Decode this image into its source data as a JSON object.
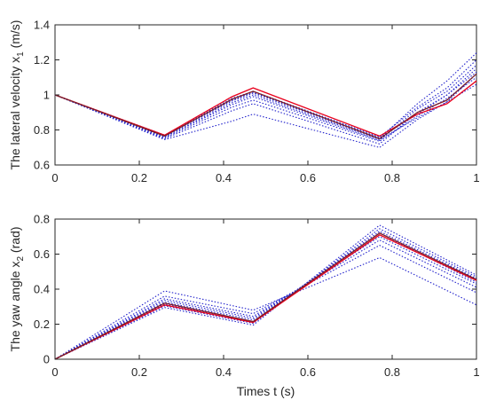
{
  "chart_data": [
    {
      "type": "line",
      "ylabel": "The lateral velocity x",
      "ylabel_sub": "1",
      "ylabel_unit": " (m/s)",
      "xlabel": "",
      "xlim": [
        0,
        1
      ],
      "ylim": [
        0.6,
        1.4
      ],
      "xticks": [
        "0",
        "0.2",
        "0.4",
        "0.6",
        "0.8",
        "1"
      ],
      "xtick_values": [
        0,
        0.2,
        0.4,
        0.6,
        0.8,
        1
      ],
      "yticks": [
        "0.6",
        "0.8",
        "1",
        "1.2",
        "1.4"
      ],
      "ytick_values": [
        0.6,
        0.8,
        1.0,
        1.2,
        1.4
      ],
      "grid": false,
      "series": [
        {
          "color": "#e8001c",
          "style": "solid",
          "x": [
            0,
            0.26,
            0.42,
            0.47,
            0.77,
            0.86,
            0.93,
            1.0
          ],
          "y": [
            1.0,
            0.77,
            0.99,
            1.04,
            0.765,
            0.89,
            0.95,
            1.08
          ]
        },
        {
          "color": "#7a1f2a",
          "style": "solid",
          "x": [
            0,
            0.26,
            0.42,
            0.47,
            0.77,
            0.86,
            0.93,
            1.0
          ],
          "y": [
            1.0,
            0.765,
            0.975,
            1.02,
            0.75,
            0.9,
            0.97,
            1.12
          ]
        },
        {
          "color": "#2222cc",
          "style": "dotted",
          "x": [
            0,
            0.26,
            0.42,
            0.47,
            0.77,
            0.86,
            0.93,
            1.0
          ],
          "y": [
            1.0,
            0.745,
            0.85,
            0.89,
            0.7,
            0.86,
            0.96,
            1.12
          ]
        },
        {
          "color": "#2222cc",
          "style": "dotted",
          "x": [
            0,
            0.26,
            0.42,
            0.47,
            0.77,
            0.86,
            0.93,
            1.0
          ],
          "y": [
            1.0,
            0.75,
            0.91,
            0.95,
            0.72,
            0.9,
            1.0,
            1.15
          ]
        },
        {
          "color": "#2222cc",
          "style": "dotted",
          "x": [
            0,
            0.26,
            0.42,
            0.47,
            0.77,
            0.86,
            0.93,
            1.0
          ],
          "y": [
            1.0,
            0.755,
            0.93,
            0.97,
            0.735,
            0.88,
            0.98,
            1.1
          ]
        },
        {
          "color": "#2222cc",
          "style": "dotted",
          "x": [
            0,
            0.26,
            0.42,
            0.47,
            0.77,
            0.86,
            0.93,
            1.0
          ],
          "y": [
            1.0,
            0.76,
            0.945,
            0.99,
            0.74,
            0.92,
            1.02,
            1.17
          ]
        },
        {
          "color": "#2222cc",
          "style": "dotted",
          "x": [
            0,
            0.26,
            0.42,
            0.47,
            0.77,
            0.86,
            0.93,
            1.0
          ],
          "y": [
            1.0,
            0.76,
            0.955,
            1.0,
            0.745,
            0.87,
            0.96,
            1.06
          ]
        },
        {
          "color": "#2222cc",
          "style": "dotted",
          "x": [
            0,
            0.26,
            0.42,
            0.47,
            0.77,
            0.86,
            0.93,
            1.0
          ],
          "y": [
            1.0,
            0.765,
            0.965,
            1.01,
            0.75,
            0.95,
            1.08,
            1.24
          ]
        },
        {
          "color": "#2222cc",
          "style": "dotted",
          "x": [
            0,
            0.26,
            0.42,
            0.47,
            0.77,
            0.86,
            0.93,
            1.0
          ],
          "y": [
            1.0,
            0.77,
            0.97,
            1.015,
            0.755,
            0.89,
            1.0,
            1.13
          ]
        },
        {
          "color": "#2222cc",
          "style": "dotted",
          "x": [
            0,
            0.26,
            0.42,
            0.47,
            0.77,
            0.86,
            0.93,
            1.0
          ],
          "y": [
            1.0,
            0.77,
            0.98,
            1.02,
            0.76,
            0.93,
            1.04,
            1.2
          ]
        }
      ]
    },
    {
      "type": "line",
      "ylabel": "The yaw angle x",
      "ylabel_sub": "2",
      "ylabel_unit": " (rad)",
      "xlabel": "Times t (s)",
      "xlim": [
        0,
        1
      ],
      "ylim": [
        0,
        0.8
      ],
      "xticks": [
        "0",
        "0.2",
        "0.4",
        "0.6",
        "0.8",
        "1"
      ],
      "xtick_values": [
        0,
        0.2,
        0.4,
        0.6,
        0.8,
        1
      ],
      "yticks": [
        "0",
        "0.2",
        "0.4",
        "0.6",
        "0.8"
      ],
      "ytick_values": [
        0,
        0.2,
        0.4,
        0.6,
        0.8
      ],
      "grid": false,
      "series": [
        {
          "color": "#e8001c",
          "style": "solid",
          "x": [
            0,
            0.26,
            0.47,
            0.77,
            1.0
          ],
          "y": [
            0,
            0.31,
            0.21,
            0.71,
            0.45
          ]
        },
        {
          "color": "#7a1f2a",
          "style": "solid",
          "x": [
            0,
            0.26,
            0.47,
            0.77,
            1.0
          ],
          "y": [
            0,
            0.32,
            0.215,
            0.72,
            0.455
          ]
        },
        {
          "color": "#2222cc",
          "style": "dotted",
          "x": [
            0,
            0.26,
            0.47,
            0.77,
            1.0
          ],
          "y": [
            0,
            0.39,
            0.28,
            0.58,
            0.31
          ]
        },
        {
          "color": "#2222cc",
          "style": "dotted",
          "x": [
            0,
            0.26,
            0.47,
            0.77,
            1.0
          ],
          "y": [
            0,
            0.36,
            0.26,
            0.65,
            0.38
          ]
        },
        {
          "color": "#2222cc",
          "style": "dotted",
          "x": [
            0,
            0.26,
            0.47,
            0.77,
            1.0
          ],
          "y": [
            0,
            0.345,
            0.245,
            0.68,
            0.41
          ]
        },
        {
          "color": "#2222cc",
          "style": "dotted",
          "x": [
            0,
            0.26,
            0.47,
            0.77,
            1.0
          ],
          "y": [
            0,
            0.335,
            0.235,
            0.7,
            0.43
          ]
        },
        {
          "color": "#2222cc",
          "style": "dotted",
          "x": [
            0,
            0.26,
            0.47,
            0.77,
            1.0
          ],
          "y": [
            0,
            0.325,
            0.225,
            0.72,
            0.44
          ]
        },
        {
          "color": "#2222cc",
          "style": "dotted",
          "x": [
            0,
            0.26,
            0.47,
            0.77,
            1.0
          ],
          "y": [
            0,
            0.315,
            0.215,
            0.73,
            0.46
          ]
        },
        {
          "color": "#2222cc",
          "style": "dotted",
          "x": [
            0,
            0.26,
            0.47,
            0.77,
            1.0
          ],
          "y": [
            0,
            0.305,
            0.205,
            0.745,
            0.47
          ]
        },
        {
          "color": "#2222cc",
          "style": "dotted",
          "x": [
            0,
            0.26,
            0.47,
            0.77,
            1.0
          ],
          "y": [
            0,
            0.295,
            0.195,
            0.765,
            0.48
          ]
        }
      ]
    }
  ]
}
